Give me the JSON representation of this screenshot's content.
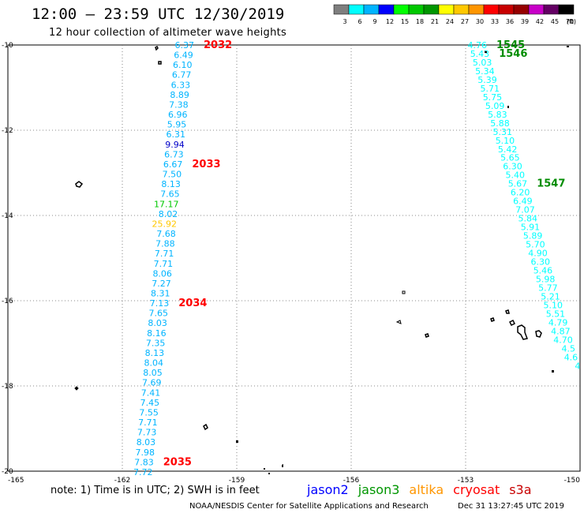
{
  "title": "12:00 – 23:59 UTC 12/30/2019",
  "subtitle": "12 hour collection of altimeter wave heights",
  "legend": {
    "unit": "(ft)",
    "bins": [
      {
        "label": "3",
        "color": "#7f7f7f"
      },
      {
        "label": "6",
        "color": "#00ffff"
      },
      {
        "label": "9",
        "color": "#00b4ff"
      },
      {
        "label": "12",
        "color": "#0000ff"
      },
      {
        "label": "15",
        "color": "#00ff00"
      },
      {
        "label": "18",
        "color": "#00c800"
      },
      {
        "label": "21",
        "color": "#009600"
      },
      {
        "label": "24",
        "color": "#ffff00"
      },
      {
        "label": "27",
        "color": "#ffc800"
      },
      {
        "label": "30",
        "color": "#ff9600"
      },
      {
        "label": "33",
        "color": "#ff0000"
      },
      {
        "label": "36",
        "color": "#c80000"
      },
      {
        "label": "39",
        "color": "#960000"
      },
      {
        "label": "42",
        "color": "#c800c8"
      },
      {
        "label": "45",
        "color": "#640064"
      },
      {
        "label": "70",
        "color": "#000000"
      }
    ]
  },
  "axes": {
    "x_ticks": [
      "-165",
      "-162",
      "-159",
      "-156",
      "-153",
      "-150"
    ],
    "y_ticks": [
      "-10",
      "-12",
      "-14",
      "-16",
      "-18",
      "-20"
    ],
    "lon_range": [
      -165,
      -150
    ],
    "lat_range": [
      -20,
      -10
    ]
  },
  "track_west": {
    "values": [
      "6.37",
      "6.49",
      "6.10",
      "6.77",
      "6.33",
      "8.89",
      "7.38",
      "6.96",
      "5.95",
      "6.31",
      "9.94",
      "6.73",
      "6.67",
      "7.50",
      "8.13",
      "7.65",
      "17.17",
      "8.02",
      "25.92",
      "7.68",
      "7.88",
      "7.71",
      "7.71",
      "8.06",
      "7.27",
      "8.31",
      "7.13",
      "7.65",
      "8.03",
      "8.16",
      "7.35",
      "8.13",
      "8.04",
      "8.05",
      "7.69",
      "7.41",
      "7.45",
      "7.55",
      "7.71",
      "7.73",
      "8.03",
      "7.98",
      "7.83",
      "7.72"
    ],
    "colors": [
      "#00b4ff",
      "#00b4ff",
      "#00b4ff",
      "#00b4ff",
      "#00b4ff",
      "#00b4ff",
      "#00b4ff",
      "#00b4ff",
      "#00b4ff",
      "#00b4ff",
      "#0000c8",
      "#00b4ff",
      "#00b4ff",
      "#00b4ff",
      "#00b4ff",
      "#00b4ff",
      "#00c800",
      "#00b4ff",
      "#ffc800",
      "#00b4ff",
      "#00b4ff",
      "#00b4ff",
      "#00b4ff",
      "#00b4ff",
      "#00b4ff",
      "#00b4ff",
      "#00b4ff",
      "#00b4ff",
      "#00b4ff",
      "#00b4ff",
      "#00b4ff",
      "#00b4ff",
      "#00b4ff",
      "#00b4ff",
      "#00b4ff",
      "#00b4ff",
      "#00b4ff",
      "#00b4ff",
      "#00b4ff",
      "#00b4ff",
      "#00b4ff",
      "#00b4ff",
      "#00b4ff",
      "#00b4ff"
    ],
    "times": [
      {
        "label": "2032",
        "color": "#ff0000",
        "index": 0
      },
      {
        "label": "2033",
        "color": "#ff0000",
        "index": 12
      },
      {
        "label": "2034",
        "color": "#ff0000",
        "index": 26
      },
      {
        "label": "2035",
        "color": "#ff0000",
        "index": 42
      }
    ]
  },
  "track_east": {
    "values": [
      "4.76",
      "5.43",
      "5.03",
      "5.34",
      "5.39",
      "5.71",
      "5.75",
      "5.09",
      "5.83",
      "5.88",
      "5.31",
      "5.10",
      "5.42",
      "5.65",
      "6.30",
      "5.40",
      "5.67",
      "6.20",
      "6.49",
      "7.07",
      "5.84",
      "5.91",
      "5.89",
      "5.70",
      "4.90",
      "6.30",
      "5.46",
      "5.98",
      "5.77",
      "5.21",
      "5.10",
      "5.51",
      "4.79",
      "4.87",
      "4.70",
      "4.5",
      "4.6",
      "4"
    ],
    "colors": [
      "#00ffff",
      "#00ffff",
      "#00ffff",
      "#00ffff",
      "#00ffff",
      "#00ffff",
      "#00ffff",
      "#00ffff",
      "#00ffff",
      "#00ffff",
      "#00ffff",
      "#00ffff",
      "#00ffff",
      "#00ffff",
      "#00ffff",
      "#00ffff",
      "#00ffff",
      "#00ffff",
      "#00ffff",
      "#00ffff",
      "#00ffff",
      "#00ffff",
      "#00ffff",
      "#00ffff",
      "#00ffff",
      "#00ffff",
      "#00ffff",
      "#00ffff",
      "#00ffff",
      "#00ffff",
      "#00ffff",
      "#00ffff",
      "#00ffff",
      "#00ffff",
      "#00ffff",
      "#00ffff",
      "#00ffff",
      "#00ffff"
    ],
    "times": [
      {
        "label": "1545",
        "color": "#008c00",
        "index": 0
      },
      {
        "label": "1546",
        "color": "#008c00",
        "index": 1
      },
      {
        "label": "1547",
        "color": "#008c00",
        "index": 16
      }
    ]
  },
  "note": "note: 1) Time is in UTC; 2) SWH is in feet",
  "satellites": [
    {
      "name": "jason2",
      "color": "#0000ff"
    },
    {
      "name": "jason3",
      "color": "#009600"
    },
    {
      "name": "altika",
      "color": "#ff9600"
    },
    {
      "name": "cryosat",
      "color": "#ff0000"
    },
    {
      "name": "s3a",
      "color": "#c80000"
    }
  ],
  "footer_credit": "NOAA/NESDIS Center for Satellite Applications and Research",
  "footer_time": "Dec 31 13:27:45 UTC 2019"
}
